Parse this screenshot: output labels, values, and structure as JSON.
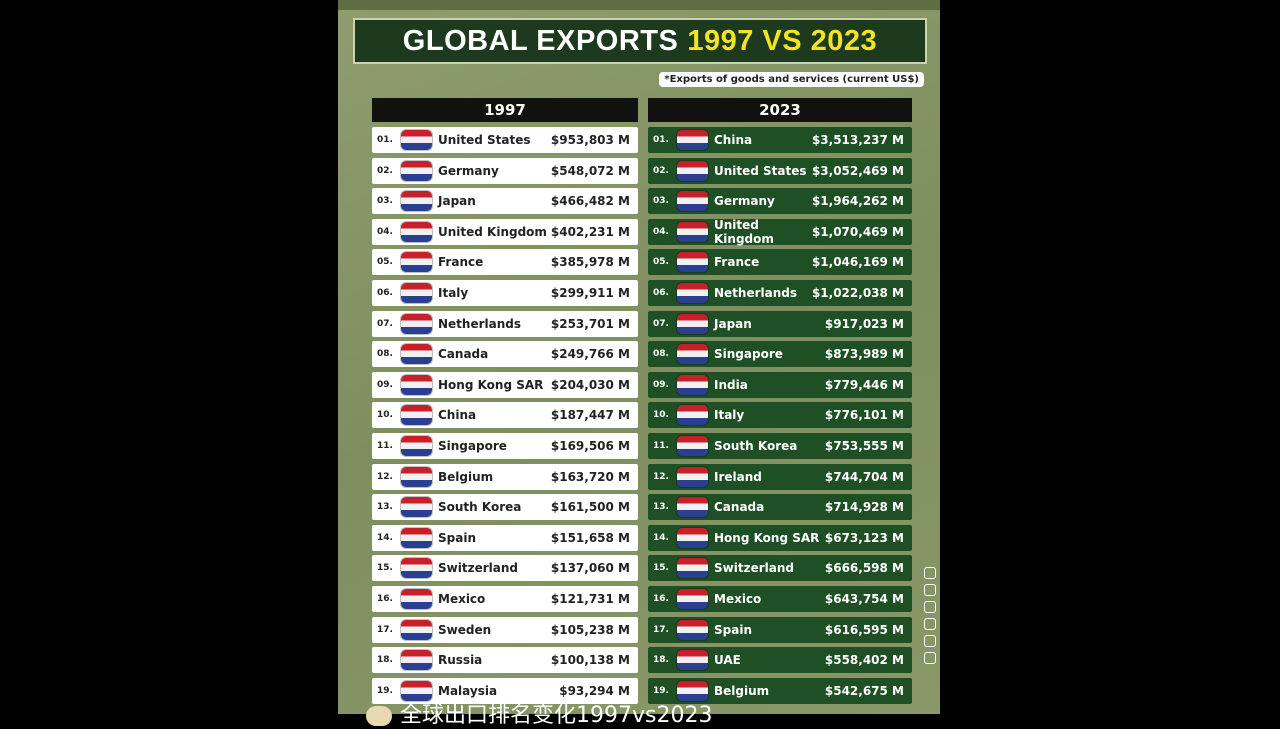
{
  "title": {
    "main": "GLOBAL EXPORTS",
    "highlight": "1997 VS 2023"
  },
  "note": "*Exports of goods and services (current US$)",
  "tables": [
    {
      "header": "1997",
      "rows": [
        [
          "01.",
          "United States",
          "$953,803 M"
        ],
        [
          "02.",
          "Germany",
          "$548,072 M"
        ],
        [
          "03.",
          "Japan",
          "$466,482 M"
        ],
        [
          "04.",
          "United Kingdom",
          "$402,231 M"
        ],
        [
          "05.",
          "France",
          "$385,978 M"
        ],
        [
          "06.",
          "Italy",
          "$299,911 M"
        ],
        [
          "07.",
          "Netherlands",
          "$253,701 M"
        ],
        [
          "08.",
          "Canada",
          "$249,766 M"
        ],
        [
          "09.",
          "Hong Kong SAR",
          "$204,030 M"
        ],
        [
          "10.",
          "China",
          "$187,447 M"
        ],
        [
          "11.",
          "Singapore",
          "$169,506 M"
        ],
        [
          "12.",
          "Belgium",
          "$163,720 M"
        ],
        [
          "13.",
          "South Korea",
          "$161,500 M"
        ],
        [
          "14.",
          "Spain",
          "$151,658 M"
        ],
        [
          "15.",
          "Switzerland",
          "$137,060 M"
        ],
        [
          "16.",
          "Mexico",
          "$121,731 M"
        ],
        [
          "17.",
          "Sweden",
          "$105,238 M"
        ],
        [
          "18.",
          "Russia",
          "$100,138 M"
        ],
        [
          "19.",
          "Malaysia",
          "$93,294 M"
        ]
      ]
    },
    {
      "header": "2023",
      "rows": [
        [
          "01.",
          "China",
          "$3,513,237 M"
        ],
        [
          "02.",
          "United States",
          "$3,052,469 M"
        ],
        [
          "03.",
          "Germany",
          "$1,964,262 M"
        ],
        [
          "04.",
          "United Kingdom",
          "$1,070,469 M"
        ],
        [
          "05.",
          "France",
          "$1,046,169 M"
        ],
        [
          "06.",
          "Netherlands",
          "$1,022,038 M"
        ],
        [
          "07.",
          "Japan",
          "$917,023 M"
        ],
        [
          "08.",
          "Singapore",
          "$873,989 M"
        ],
        [
          "09.",
          "India",
          "$779,446 M"
        ],
        [
          "10.",
          "Italy",
          "$776,101 M"
        ],
        [
          "11.",
          "South Korea",
          "$753,555 M"
        ],
        [
          "12.",
          "Ireland",
          "$744,704 M"
        ],
        [
          "13.",
          "Canada",
          "$714,928 M"
        ],
        [
          "14.",
          "Hong Kong SAR",
          "$673,123 M"
        ],
        [
          "15.",
          "Switzerland",
          "$666,598 M"
        ],
        [
          "16.",
          "Mexico",
          "$643,754 M"
        ],
        [
          "17.",
          "Spain",
          "$616,595 M"
        ],
        [
          "18.",
          "UAE",
          "$558,402 M"
        ],
        [
          "19.",
          "Belgium",
          "$542,675 M"
        ]
      ]
    }
  ],
  "caption": "全球出口排名变化1997vs2023"
}
